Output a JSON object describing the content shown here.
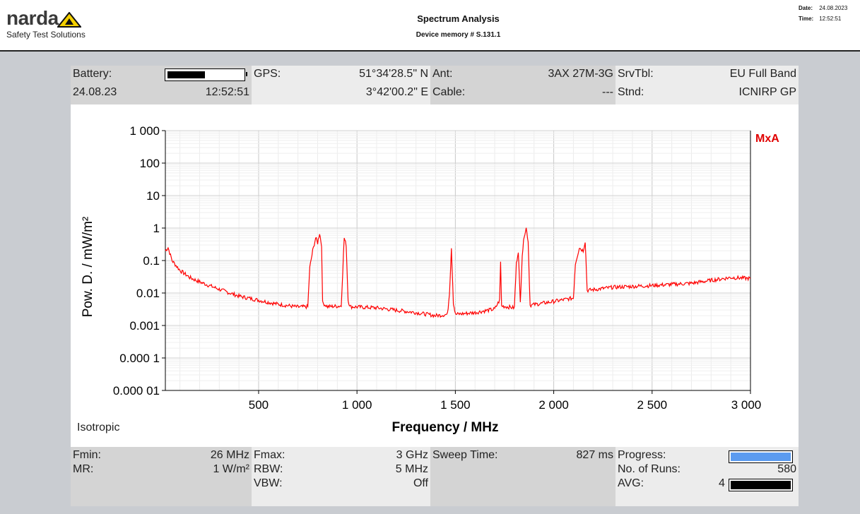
{
  "header": {
    "logo_word": "narda",
    "logo_sub": "Safety Test Solutions",
    "title": "Spectrum Analysis",
    "subtitle": "Device memory # S.131.1",
    "date_label": "Date:",
    "date_value": "24.08.2023",
    "time_label": "Time:",
    "time_value": "12:52:51"
  },
  "status": {
    "battery_label": "Battery:",
    "battery_level": 0.5,
    "date": "24.08.23",
    "time": "12:52:51",
    "gps_label": "GPS:",
    "gps_lat": "51°34'28.5\" N",
    "gps_lon": "3°42'00.2\" E",
    "ant_label": "Ant:",
    "ant_value": "3AX 27M-3G",
    "cable_label": "Cable:",
    "cable_value": "---",
    "srvtbl_label": "SrvTbl:",
    "srvtbl_value": "EU Full Band",
    "stnd_label": "Stnd:",
    "stnd_value": "ICNIRP GP"
  },
  "footer": {
    "fmin_label": "Fmin:",
    "fmin_value": "26 MHz",
    "mr_label": "MR:",
    "mr_value": "1 W/m²",
    "fmax_label": "Fmax:",
    "fmax_value": "3 GHz",
    "rbw_label": "RBW:",
    "rbw_value": "5 MHz",
    "vbw_label": "VBW:",
    "vbw_value": "Off",
    "sweep_label": "Sweep Time:",
    "sweep_value": "827 ms",
    "progress_label": "Progress:",
    "progress_level": 1.0,
    "runs_label": "No. of Runs:",
    "runs_value": "580",
    "avg_label": "AVG:",
    "avg_value": "4",
    "avg_level": 1.0
  },
  "isotropic_label": "Isotropic",
  "colors": {
    "trace": "#ff0000",
    "progress": "#5b9bf0",
    "panel_gray": "#d4d4d4"
  },
  "chart_data": {
    "type": "line",
    "xlabel": "Frequency / MHz",
    "ylabel": "Pow. D. / mW/m²",
    "legend": "MxA",
    "legend_position": "top-right",
    "log_y": true,
    "grid": true,
    "xlim": [
      26,
      3000
    ],
    "ylim": [
      1e-05,
      1000
    ],
    "x_ticks": [
      500,
      1000,
      1500,
      2000,
      2500,
      3000
    ],
    "x_tick_labels": [
      "500",
      "1 000",
      "1 500",
      "2 000",
      "2 500",
      "3 000"
    ],
    "y_ticks": [
      1000,
      100,
      10,
      1,
      0.1,
      0.01,
      0.001,
      0.0001,
      1e-05
    ],
    "y_tick_labels": [
      "1 000",
      "100",
      "10",
      "1",
      "0.1",
      "0.01",
      "0.001",
      "0.000 1",
      "0.000 01"
    ],
    "series": [
      {
        "name": "MxA",
        "points": [
          [
            26,
            0.2
          ],
          [
            40,
            0.25
          ],
          [
            60,
            0.1
          ],
          [
            100,
            0.05
          ],
          [
            150,
            0.03
          ],
          [
            200,
            0.022
          ],
          [
            300,
            0.013
          ],
          [
            400,
            0.008
          ],
          [
            500,
            0.006
          ],
          [
            600,
            0.0045
          ],
          [
            700,
            0.0037
          ],
          [
            750,
            0.0038
          ],
          [
            760,
            0.06
          ],
          [
            775,
            0.2
          ],
          [
            790,
            0.5
          ],
          [
            800,
            0.35
          ],
          [
            810,
            0.7
          ],
          [
            820,
            0.3
          ],
          [
            825,
            0.005
          ],
          [
            850,
            0.0038
          ],
          [
            920,
            0.004
          ],
          [
            935,
            0.5
          ],
          [
            945,
            0.3
          ],
          [
            955,
            0.006
          ],
          [
            965,
            0.0038
          ],
          [
            1100,
            0.0035
          ],
          [
            1300,
            0.0025
          ],
          [
            1400,
            0.002
          ],
          [
            1460,
            0.0022
          ],
          [
            1470,
            0.01
          ],
          [
            1480,
            0.25
          ],
          [
            1490,
            0.005
          ],
          [
            1500,
            0.0022
          ],
          [
            1600,
            0.0025
          ],
          [
            1700,
            0.0032
          ],
          [
            1725,
            0.006
          ],
          [
            1730,
            0.09
          ],
          [
            1735,
            0.004
          ],
          [
            1800,
            0.0035
          ],
          [
            1810,
            0.08
          ],
          [
            1820,
            0.2
          ],
          [
            1830,
            0.005
          ],
          [
            1840,
            0.15
          ],
          [
            1850,
            0.6
          ],
          [
            1860,
            1.0
          ],
          [
            1870,
            0.4
          ],
          [
            1880,
            0.0042
          ],
          [
            2000,
            0.0055
          ],
          [
            2100,
            0.007
          ],
          [
            2110,
            0.08
          ],
          [
            2130,
            0.25
          ],
          [
            2150,
            0.2
          ],
          [
            2160,
            0.4
          ],
          [
            2170,
            0.012
          ],
          [
            2300,
            0.015
          ],
          [
            2500,
            0.017
          ],
          [
            2700,
            0.02
          ],
          [
            2900,
            0.03
          ],
          [
            3000,
            0.028
          ]
        ]
      }
    ]
  }
}
